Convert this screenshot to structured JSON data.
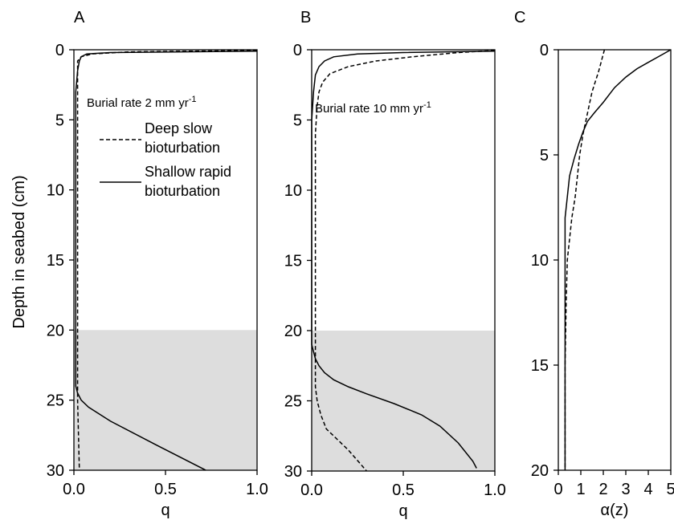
{
  "chart_data": [
    {
      "panel": "A",
      "type": "line",
      "xlabel": "q",
      "ylabel": "Depth in seabed (cm)",
      "xlim": [
        0,
        1
      ],
      "ylim": [
        30,
        0
      ],
      "xticks": [
        "0.0",
        "0.5",
        "1.0"
      ],
      "yticks": [
        "0",
        "5",
        "10",
        "15",
        "20",
        "25",
        "30"
      ],
      "shaded_depth": [
        20,
        30
      ],
      "annotation": {
        "text": "Burial rate 2 mm yr",
        "sup": "-1"
      },
      "legend": {
        "dashed_label": [
          "Deep slow",
          "bioturbation"
        ],
        "solid_label": [
          "Shallow rapid",
          "bioturbation"
        ]
      },
      "series": [
        {
          "style": "solid",
          "x": [
            1.0,
            0.2,
            0.07,
            0.04,
            0.03,
            0.02,
            0.01,
            0.01,
            0.01,
            0.01,
            0.01,
            0.01,
            0.01,
            0.01,
            0.02,
            0.04,
            0.08,
            0.2,
            0.45,
            0.72
          ],
          "y": [
            0.1,
            0.2,
            0.3,
            0.5,
            0.8,
            1.5,
            3,
            6,
            10,
            15,
            20,
            22,
            23.5,
            24,
            24.5,
            25,
            25.5,
            26.5,
            28.2,
            30
          ]
        },
        {
          "style": "dashed",
          "x": [
            1.0,
            0.3,
            0.1,
            0.04,
            0.02,
            0.02,
            0.02,
            0.02,
            0.02,
            0.02,
            0.03
          ],
          "y": [
            0.05,
            0.15,
            0.3,
            0.5,
            0.8,
            1,
            5,
            10,
            20,
            25,
            30
          ]
        }
      ]
    },
    {
      "panel": "B",
      "type": "line",
      "xlabel": "q",
      "xlim": [
        0,
        1
      ],
      "ylim": [
        30,
        0
      ],
      "xticks": [
        "0.0",
        "0.5",
        "1.0"
      ],
      "yticks": [
        "0",
        "5",
        "10",
        "15",
        "20",
        "25",
        "30"
      ],
      "shaded_depth": [
        20,
        30
      ],
      "annotation": {
        "text": "Burial rate 10 mm yr",
        "sup": "-1"
      },
      "series": [
        {
          "style": "solid",
          "x": [
            1.0,
            0.5,
            0.25,
            0.12,
            0.07,
            0.04,
            0.02,
            0.01,
            0.0,
            0.0,
            0.0,
            0.0,
            0.0,
            0.0,
            0.01,
            0.02,
            0.04,
            0.07,
            0.12,
            0.2,
            0.3,
            0.45,
            0.6,
            0.7,
            0.8,
            0.88,
            0.9
          ],
          "y": [
            0.1,
            0.2,
            0.3,
            0.5,
            0.8,
            1.2,
            1.8,
            3,
            5,
            10,
            15,
            20,
            20.5,
            21,
            21.5,
            22,
            22.5,
            23,
            23.5,
            24,
            24.5,
            25.2,
            26,
            26.8,
            28,
            29.3,
            29.8
          ]
        },
        {
          "style": "dashed",
          "x": [
            1.0,
            0.8,
            0.55,
            0.35,
            0.2,
            0.1,
            0.06,
            0.04,
            0.03,
            0.02,
            0.02,
            0.02,
            0.02,
            0.03,
            0.05,
            0.08,
            0.12,
            0.2,
            0.3
          ],
          "y": [
            0.05,
            0.2,
            0.5,
            0.8,
            1.2,
            1.7,
            2.3,
            3,
            4,
            6,
            10,
            20,
            24,
            25,
            26,
            27,
            27.5,
            28.5,
            30
          ]
        }
      ]
    },
    {
      "panel": "C",
      "type": "line",
      "xlabel": "α(z)",
      "xlim": [
        0,
        5
      ],
      "ylim": [
        20,
        0
      ],
      "xticks": [
        "0",
        "1",
        "2",
        "3",
        "4",
        "5"
      ],
      "yticks": [
        "0",
        "5",
        "10",
        "15",
        "20"
      ],
      "series": [
        {
          "style": "solid",
          "x": [
            5.0,
            4.5,
            4.0,
            3.5,
            3.0,
            2.5,
            2.0,
            1.6,
            1.3,
            1.1,
            0.9,
            0.7,
            0.5,
            0.4,
            0.3,
            0.3,
            0.3,
            0.3,
            0.3
          ],
          "y": [
            0.0,
            0.3,
            0.6,
            0.9,
            1.3,
            1.8,
            2.5,
            3.0,
            3.4,
            3.9,
            4.5,
            5.2,
            6.0,
            7.0,
            8.0,
            10.0,
            14.0,
            17.0,
            20.0
          ]
        },
        {
          "style": "dashed",
          "x": [
            2.05,
            1.8,
            1.5,
            1.3,
            1.1,
            0.95,
            0.85,
            0.75,
            0.6,
            0.5,
            0.4,
            0.35,
            0.3,
            0.3
          ],
          "y": [
            0.0,
            1.0,
            2.0,
            3.0,
            4.0,
            5.0,
            6.0,
            7.0,
            8.0,
            9.0,
            10.0,
            12.0,
            15.0,
            20.0
          ]
        }
      ]
    }
  ]
}
